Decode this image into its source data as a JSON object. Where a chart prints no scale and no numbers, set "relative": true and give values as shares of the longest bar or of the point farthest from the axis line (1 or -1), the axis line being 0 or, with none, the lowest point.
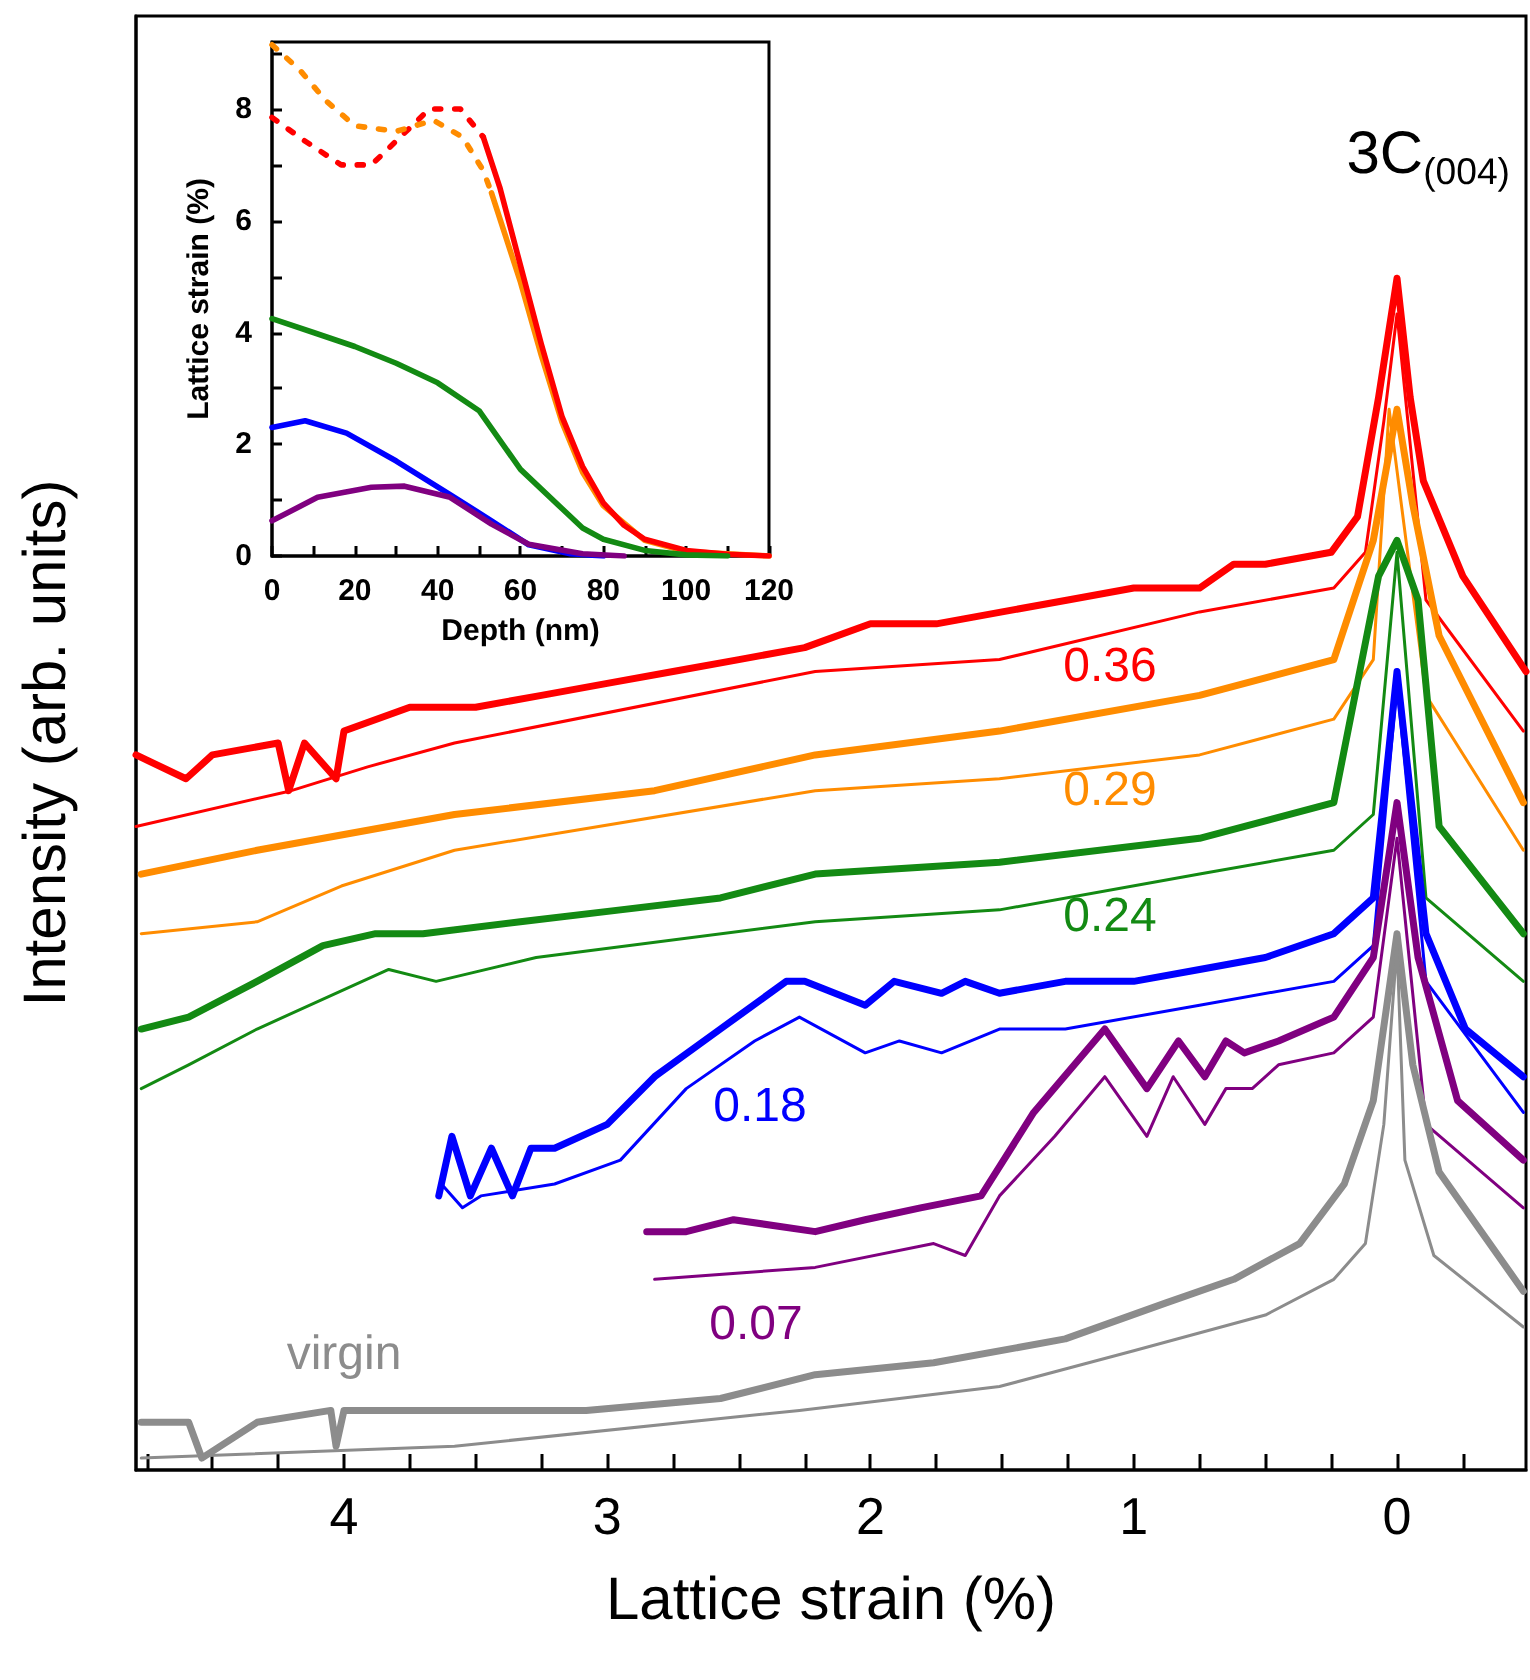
{
  "chart_data": [
    {
      "type": "line",
      "xlabel": "Lattice strain (%)",
      "ylabel": "Intensity (arb. units)",
      "relative": true,
      "marker": "none",
      "line_style": "solid",
      "xlim": [
        4.79,
        -0.49
      ],
      "xticks": [
        {
          "value": 4.75,
          "label": null
        },
        {
          "value": 4.5,
          "label": null
        },
        {
          "value": 4.25,
          "label": null
        },
        4,
        {
          "value": 3.75,
          "label": null
        },
        {
          "value": 3.5,
          "label": null
        },
        {
          "value": 3.25,
          "label": null
        },
        3,
        {
          "value": 2.75,
          "label": null
        },
        {
          "value": 2.5,
          "label": null
        },
        {
          "value": 2.25,
          "label": null
        },
        2,
        {
          "value": 1.75,
          "label": null
        },
        {
          "value": 1.5,
          "label": null
        },
        {
          "value": 1.25,
          "label": null
        },
        1,
        {
          "value": 0.75,
          "label": null
        },
        {
          "value": 0.5,
          "label": null
        },
        {
          "value": 0.25,
          "label": null
        },
        0,
        {
          "value": -0.25,
          "label": null
        }
      ],
      "annotations": [
        "3C$_{(004)}$"
      ],
      "series": [
        {
          "name": "0.36",
          "color": "#ff0000",
          "x": [
            4.79,
            4.6,
            4.5,
            4.25,
            4.21,
            4.15,
            4.03,
            4.0,
            3.75,
            3.5,
            3.25,
            3.0,
            2.75,
            2.5,
            2.25,
            2.0,
            1.75,
            1.5,
            1.25,
            1.0,
            0.75,
            0.62,
            0.5,
            0.25,
            0.15,
            0.07,
            0,
            -0.05,
            -0.1,
            -0.25,
            -0.49
          ],
          "values": [
            0.6,
            0.58,
            0.6,
            0.61,
            0.57,
            0.61,
            0.58,
            0.62,
            0.64,
            0.64,
            0.65,
            0.66,
            0.67,
            0.68,
            0.69,
            0.71,
            0.71,
            0.72,
            0.73,
            0.74,
            0.74,
            0.76,
            0.76,
            0.77,
            0.8,
            0.9,
            1,
            0.9,
            0.83,
            0.75,
            0.67
          ]
        },
        {
          "color": "#ff0000",
          "x": [
            4.79,
            4.2,
            3.91,
            3.58,
            2.21,
            1.51,
            0.75,
            0.24,
            0.12,
            0.05,
            0,
            -0.11,
            -0.48
          ],
          "values": [
            0.54,
            0.57,
            0.59,
            0.61,
            0.67,
            0.68,
            0.72,
            0.74,
            0.77,
            0.88,
            0.97,
            0.73,
            0.62
          ]
        },
        {
          "name": "0.29",
          "color": "#ff8c00",
          "x": [
            4.77,
            4.33,
            3.58,
            2.82,
            2.21,
            1.51,
            0.75,
            0.24,
            0.09,
            0,
            -0.06,
            -0.16,
            -0.48
          ],
          "values": [
            0.5,
            0.52,
            0.55,
            0.57,
            0.6,
            0.62,
            0.65,
            0.68,
            0.78,
            0.89,
            0.81,
            0.7,
            0.56
          ]
        },
        {
          "color": "#ff8c00",
          "x": [
            4.77,
            4.33,
            4.01,
            3.58,
            2.21,
            1.51,
            0.75,
            0.24,
            0.09,
            0.03,
            -0.11,
            -0.48
          ],
          "values": [
            0.45,
            0.46,
            0.49,
            0.52,
            0.57,
            0.58,
            0.6,
            0.63,
            0.68,
            0.89,
            0.65,
            0.52
          ]
        },
        {
          "name": "0.24",
          "color": "#138a13",
          "x": [
            4.77,
            4.59,
            4.33,
            4.08,
            3.88,
            3.7,
            3.33,
            2.95,
            2.57,
            2.21,
            1.51,
            0.75,
            0.24,
            0.07,
            0,
            -0.08,
            -0.16,
            -0.48
          ],
          "values": [
            0.37,
            0.38,
            0.41,
            0.44,
            0.45,
            0.45,
            0.46,
            0.47,
            0.48,
            0.5,
            0.51,
            0.53,
            0.56,
            0.75,
            0.78,
            0.73,
            0.54,
            0.45
          ]
        },
        {
          "color": "#138a13",
          "x": [
            4.77,
            4.59,
            4.33,
            3.83,
            3.65,
            3.27,
            2.21,
            1.51,
            0.75,
            0.24,
            0.09,
            0,
            -0.11,
            -0.48
          ],
          "values": [
            0.32,
            0.34,
            0.37,
            0.42,
            0.41,
            0.43,
            0.46,
            0.47,
            0.5,
            0.52,
            0.55,
            0.77,
            0.48,
            0.41
          ]
        },
        {
          "name": "0.18",
          "color": "#0000ff",
          "x": [
            3.64,
            3.59,
            3.52,
            3.44,
            3.36,
            3.29,
            3.2,
            3.0,
            2.82,
            2.57,
            2.32,
            2.25,
            2.02,
            1.91,
            1.73,
            1.64,
            1.51,
            1.26,
            1.0,
            0.75,
            0.5,
            0.24,
            0.09,
            0,
            -0.11,
            -0.26,
            -0.48
          ],
          "values": [
            0.23,
            0.28,
            0.23,
            0.27,
            0.23,
            0.27,
            0.27,
            0.29,
            0.33,
            0.37,
            0.41,
            0.41,
            0.39,
            0.41,
            0.4,
            0.41,
            0.4,
            0.41,
            0.41,
            0.42,
            0.43,
            0.45,
            0.48,
            0.67,
            0.45,
            0.37,
            0.33
          ]
        },
        {
          "color": "#0000ff",
          "x": [
            3.63,
            3.55,
            3.48,
            3.2,
            2.95,
            2.7,
            2.44,
            2.27,
            2.02,
            1.89,
            1.73,
            1.51,
            1.26,
            0.75,
            0.24,
            0.09,
            0,
            -0.11,
            -0.48
          ],
          "values": [
            0.24,
            0.22,
            0.23,
            0.24,
            0.26,
            0.32,
            0.36,
            0.38,
            0.35,
            0.36,
            0.35,
            0.37,
            0.37,
            0.39,
            0.41,
            0.44,
            0.66,
            0.41,
            0.3
          ]
        },
        {
          "name": "0.07",
          "color": "#800080",
          "x": [
            2.85,
            2.7,
            2.52,
            2.21,
            2.02,
            1.81,
            1.58,
            1.38,
            1.11,
            0.95,
            0.83,
            0.73,
            0.65,
            0.58,
            0.45,
            0.24,
            0.09,
            0,
            -0.08,
            -0.23,
            -0.48
          ],
          "values": [
            0.2,
            0.2,
            0.21,
            0.2,
            0.21,
            0.22,
            0.23,
            0.3,
            0.37,
            0.32,
            0.36,
            0.33,
            0.36,
            0.35,
            0.36,
            0.38,
            0.43,
            0.56,
            0.43,
            0.31,
            0.26
          ]
        },
        {
          "color": "#800080",
          "x": [
            2.82,
            2.21,
            1.76,
            1.64,
            1.51,
            1.3,
            1.11,
            0.95,
            0.85,
            0.73,
            0.65,
            0.55,
            0.45,
            0.24,
            0.09,
            0,
            -0.11,
            -0.48
          ],
          "values": [
            0.16,
            0.17,
            0.19,
            0.18,
            0.23,
            0.28,
            0.33,
            0.28,
            0.33,
            0.29,
            0.32,
            0.32,
            0.34,
            0.35,
            0.38,
            0.53,
            0.29,
            0.22
          ]
        },
        {
          "name": "virgin",
          "color": "#8c8c8c",
          "x": [
            4.77,
            4.59,
            4.54,
            4.33,
            4.05,
            4.03,
            4.0,
            3.58,
            3.08,
            2.57,
            2.21,
            1.76,
            1.26,
            0.88,
            0.62,
            0.37,
            0.2,
            0.09,
            0,
            -0.06,
            -0.16,
            -0.48
          ],
          "values": [
            0.04,
            0.04,
            0.01,
            0.04,
            0.05,
            0.02,
            0.05,
            0.05,
            0.05,
            0.06,
            0.08,
            0.09,
            0.11,
            0.14,
            0.16,
            0.19,
            0.24,
            0.31,
            0.45,
            0.34,
            0.25,
            0.15
          ]
        },
        {
          "color": "#8c8c8c",
          "x": [
            4.77,
            3.58,
            2.27,
            1.51,
            1.0,
            0.5,
            0.24,
            0.12,
            0.05,
            0,
            -0.03,
            -0.14,
            -0.48
          ],
          "values": [
            0.01,
            0.02,
            0.05,
            0.07,
            0.1,
            0.13,
            0.16,
            0.19,
            0.29,
            0.44,
            0.26,
            0.18,
            0.12
          ]
        }
      ]
    },
    {
      "type": "line",
      "xlabel": "Depth (nm)",
      "ylabel": "Lattice strain (%)",
      "marker": "none",
      "line_style": "solid",
      "xlim": [
        0,
        120
      ],
      "xticks": [
        0,
        {
          "value": 10,
          "label": null
        },
        20,
        {
          "value": 30,
          "label": null
        },
        40,
        {
          "value": 50,
          "label": null
        },
        60,
        {
          "value": 70,
          "label": null
        },
        80,
        {
          "value": 90,
          "label": null
        },
        100,
        {
          "value": 110,
          "label": null
        },
        120
      ],
      "ylim": [
        0,
        9.2
      ],
      "yticks": [
        0,
        {
          "value": 1,
          "label": null
        },
        2,
        {
          "value": 3,
          "label": null
        },
        4,
        {
          "value": 5,
          "label": null
        },
        6,
        {
          "value": 7,
          "label": null
        },
        8,
        {
          "value": 9,
          "label": null
        }
      ],
      "series": [
        {
          "color": "#ff0000",
          "line_style": "dotted",
          "x": [
            0,
            7.5,
            16.7,
            24,
            31,
            38,
            45.5,
            51
          ],
          "values": [
            7.85,
            7.45,
            7.0,
            7.0,
            7.5,
            8.0,
            8.0,
            7.5
          ]
        },
        {
          "color": "#ff8c00",
          "line_style": "dotted",
          "x": [
            0,
            6.7,
            13,
            20,
            30,
            39,
            46,
            51,
            53
          ],
          "values": [
            9.15,
            8.7,
            8.15,
            7.7,
            7.6,
            7.8,
            7.5,
            6.9,
            6.5
          ]
        },
        {
          "color": "#ff8c00",
          "x": [
            53,
            60,
            65,
            70,
            75,
            80,
            90,
            100,
            120
          ],
          "values": [
            6.5,
            4.9,
            3.6,
            2.4,
            1.5,
            0.9,
            0.28,
            0.08,
            0
          ]
        },
        {
          "color": "#ff0000",
          "x": [
            51,
            55,
            60,
            65,
            70,
            75,
            80,
            85,
            90,
            100,
            110,
            120
          ],
          "values": [
            7.5,
            6.6,
            5.2,
            3.8,
            2.5,
            1.6,
            0.95,
            0.55,
            0.3,
            0.1,
            0.03,
            0
          ]
        },
        {
          "color": "#138a13",
          "x": [
            0,
            10,
            20,
            30,
            40,
            50,
            60,
            70,
            75,
            80,
            90,
            100,
            110
          ],
          "values": [
            4.25,
            4.0,
            3.75,
            3.45,
            3.1,
            2.6,
            1.55,
            0.85,
            0.5,
            0.3,
            0.1,
            0.02,
            0
          ]
        },
        {
          "color": "#0000ff",
          "x": [
            0,
            8,
            18,
            30,
            43,
            53,
            62,
            72,
            80
          ],
          "values": [
            2.3,
            2.42,
            2.2,
            1.7,
            1.1,
            0.63,
            0.2,
            0.04,
            0
          ]
        },
        {
          "color": "#800080",
          "x": [
            0,
            11,
            24,
            32,
            43,
            53,
            62,
            75,
            85
          ],
          "values": [
            0.63,
            1.05,
            1.23,
            1.25,
            1.05,
            0.57,
            0.21,
            0.04,
            0
          ]
        }
      ]
    }
  ]
}
